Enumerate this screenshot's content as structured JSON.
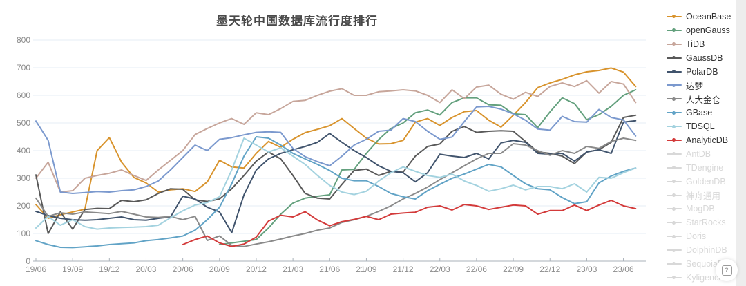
{
  "title": "墨天轮中国数据库流行度排行",
  "help_button_label": "?",
  "chart_data": {
    "type": "line",
    "title": "墨天轮中国数据库流行度排行",
    "xlabel": "",
    "ylabel": "",
    "ylim": [
      0,
      800
    ],
    "y_ticks": [
      0,
      100,
      200,
      300,
      400,
      500,
      600,
      700,
      800
    ],
    "x_tick_labels": [
      "19/06",
      "19/09",
      "19/12",
      "20/03",
      "20/06",
      "20/09",
      "20/12",
      "21/03",
      "21/06",
      "21/09",
      "21/12",
      "22/03",
      "22/06",
      "22/09",
      "22/12",
      "23/03",
      "23/06"
    ],
    "points_are_monthly": true,
    "ticks_every_n_points": 3,
    "grid": "horizontal-only",
    "legend_position": "right",
    "axis_color": "#aab2ba",
    "grid_color": "#e4ecf4",
    "tick_label_color": "#8c8c8c",
    "disabled_color": "#d8d8d8",
    "series": [
      {
        "name": "OceanBase",
        "color": "#d8932c",
        "values": [
          205,
          155,
          168,
          178,
          188,
          400,
          447,
          358,
          303,
          283,
          250,
          258,
          262,
          252,
          287,
          365,
          341,
          337,
          390,
          433,
          412,
          441,
          465,
          477,
          490,
          516,
          480,
          445,
          424,
          425,
          437,
          503,
          516,
          491,
          520,
          541,
          545,
          510,
          485,
          528,
          574,
          628,
          645,
          658,
          674,
          685,
          690,
          699,
          684,
          632
        ]
      },
      {
        "name": "openGauss",
        "color": "#63a07d",
        "values": [
          null,
          null,
          null,
          null,
          null,
          null,
          null,
          null,
          null,
          null,
          null,
          null,
          null,
          null,
          null,
          60,
          66,
          72,
          78,
          120,
          170,
          210,
          228,
          235,
          240,
          330,
          332,
          390,
          440,
          480,
          500,
          537,
          547,
          529,
          574,
          591,
          591,
          566,
          564,
          533,
          530,
          483,
          540,
          591,
          570,
          512,
          530,
          560,
          600,
          620
        ]
      },
      {
        "name": "TiDB",
        "color": "#c7a69b",
        "values": [
          300,
          358,
          250,
          255,
          300,
          310,
          318,
          330,
          310,
          292,
          330,
          365,
          400,
          458,
          480,
          500,
          516,
          495,
          537,
          530,
          552,
          578,
          582,
          600,
          615,
          624,
          600,
          600,
          613,
          616,
          620,
          616,
          600,
          574,
          620,
          588,
          630,
          637,
          604,
          586,
          611,
          596,
          632,
          645,
          632,
          653,
          608,
          650,
          641,
          574
        ]
      },
      {
        "name": "GaussDB",
        "color": "#595959",
        "values": [
          312,
          100,
          178,
          116,
          187,
          191,
          190,
          220,
          215,
          222,
          245,
          262,
          260,
          222,
          216,
          225,
          262,
          310,
          362,
          395,
          370,
          310,
          245,
          228,
          225,
          278,
          328,
          333,
          310,
          325,
          322,
          380,
          415,
          424,
          470,
          487,
          466,
          470,
          472,
          470,
          433,
          395,
          390,
          380,
          353,
          395,
          403,
          430,
          520,
          528
        ]
      },
      {
        "name": "PolarDB",
        "color": "#41546d",
        "values": [
          180,
          165,
          155,
          150,
          148,
          150,
          155,
          160,
          150,
          148,
          155,
          160,
          235,
          225,
          195,
          178,
          103,
          240,
          330,
          370,
          390,
          403,
          415,
          430,
          462,
          430,
          400,
          375,
          345,
          325,
          320,
          287,
          320,
          387,
          380,
          375,
          390,
          370,
          428,
          437,
          430,
          390,
          387,
          390,
          362,
          395,
          403,
          390,
          503,
          508
        ]
      },
      {
        "name": "达梦",
        "color": "#7b99ce",
        "values": [
          507,
          437,
          250,
          245,
          248,
          252,
          250,
          255,
          258,
          270,
          290,
          330,
          375,
          420,
          400,
          441,
          447,
          457,
          466,
          468,
          466,
          408,
          378,
          360,
          345,
          380,
          420,
          441,
          470,
          474,
          516,
          505,
          470,
          441,
          449,
          505,
          558,
          560,
          550,
          533,
          510,
          478,
          474,
          524,
          505,
          503,
          549,
          520,
          511,
          453
        ]
      },
      {
        "name": "人大金仓",
        "color": "#8a8a8a",
        "values": [
          228,
          162,
          175,
          170,
          178,
          175,
          172,
          180,
          170,
          160,
          158,
          162,
          150,
          162,
          75,
          91,
          57,
          53,
          62,
          70,
          80,
          91,
          100,
          112,
          120,
          140,
          150,
          162,
          180,
          200,
          225,
          245,
          268,
          295,
          320,
          345,
          370,
          390,
          390,
          425,
          420,
          400,
          383,
          400,
          390,
          415,
          408,
          433,
          445,
          437
        ]
      },
      {
        "name": "GBase",
        "color": "#61a3c6",
        "values": [
          74,
          60,
          50,
          49,
          52,
          55,
          60,
          63,
          66,
          74,
          78,
          84,
          91,
          112,
          150,
          195,
          280,
          380,
          450,
          445,
          420,
          390,
          370,
          350,
          328,
          300,
          291,
          291,
          270,
          245,
          233,
          225,
          255,
          278,
          300,
          315,
          333,
          350,
          341,
          310,
          280,
          262,
          258,
          230,
          208,
          215,
          283,
          308,
          325,
          337
        ]
      },
      {
        "name": "TDSQL",
        "color": "#a3d2df",
        "values": [
          120,
          162,
          130,
          150,
          125,
          116,
          120,
          122,
          123,
          125,
          130,
          157,
          182,
          203,
          212,
          233,
          330,
          445,
          420,
          395,
          410,
          380,
          350,
          310,
          274,
          250,
          241,
          253,
          290,
          320,
          341,
          325,
          310,
          303,
          315,
          290,
          274,
          253,
          262,
          275,
          258,
          270,
          270,
          262,
          280,
          250,
          303,
          300,
          320,
          337
        ]
      },
      {
        "name": "AnalyticDB",
        "color": "#d33a3a",
        "values": [
          null,
          null,
          null,
          null,
          null,
          null,
          null,
          null,
          null,
          null,
          null,
          null,
          60,
          78,
          91,
          66,
          53,
          62,
          87,
          145,
          166,
          160,
          179,
          149,
          128,
          143,
          151,
          162,
          150,
          170,
          174,
          177,
          195,
          200,
          185,
          205,
          200,
          187,
          195,
          203,
          200,
          170,
          183,
          183,
          203,
          183,
          203,
          220,
          200,
          190
        ]
      }
    ],
    "disabled_series": [
      "AntDB",
      "TDengine",
      "GoldenDB",
      "神舟通用",
      "MogDB",
      "StarRocks",
      "Doris",
      "DolphinDB",
      "SequoiaDB",
      "Kyligence"
    ]
  }
}
